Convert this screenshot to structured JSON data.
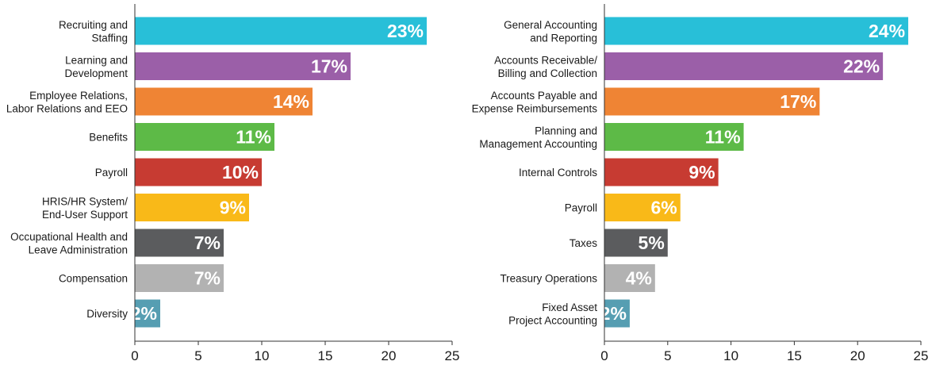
{
  "chart_data": [
    {
      "type": "bar",
      "orientation": "horizontal",
      "categories": [
        [
          "Recruiting and",
          "Staffing"
        ],
        [
          "Learning and",
          "Development"
        ],
        [
          "Employee Relations,",
          "Labor Relations and EEO"
        ],
        [
          "Benefits"
        ],
        [
          "Payroll"
        ],
        [
          "HRIS/HR System/",
          "End-User Support"
        ],
        [
          "Occupational Health and",
          "Leave Administration"
        ],
        [
          "Compensation"
        ],
        [
          "Diversity"
        ]
      ],
      "values": [
        23,
        17,
        14,
        11,
        10,
        9,
        7,
        7,
        2
      ],
      "value_labels": [
        "23%",
        "17%",
        "14%",
        "11%",
        "10%",
        "9%",
        "7%",
        "7%",
        "2%"
      ],
      "colors": [
        "#28bfd8",
        "#9b5fa8",
        "#ef8434",
        "#5dba47",
        "#c73b32",
        "#f9b918",
        "#5b5c5e",
        "#b2b2b2",
        "#569eb2"
      ],
      "xlim": [
        0,
        25
      ],
      "xticks": [
        "0",
        "5",
        "10",
        "15",
        "20",
        "25"
      ],
      "title": "",
      "xlabel": "",
      "ylabel": "",
      "grid": false
    },
    {
      "type": "bar",
      "orientation": "horizontal",
      "categories": [
        [
          "General Accounting",
          "and Reporting"
        ],
        [
          "Accounts Receivable/",
          "Billing and Collection"
        ],
        [
          "Accounts Payable and",
          "Expense Reimbursements"
        ],
        [
          "Planning and",
          "Management Accounting"
        ],
        [
          "Internal Controls"
        ],
        [
          "Payroll"
        ],
        [
          "Taxes"
        ],
        [
          "Treasury Operations"
        ],
        [
          "Fixed Asset",
          "Project Accounting"
        ]
      ],
      "values": [
        24,
        22,
        17,
        11,
        9,
        6,
        5,
        4,
        2
      ],
      "value_labels": [
        "24%",
        "22%",
        "17%",
        "11%",
        "9%",
        "6%",
        "5%",
        "4%",
        "2%"
      ],
      "colors": [
        "#28bfd8",
        "#9b5fa8",
        "#ef8434",
        "#5dba47",
        "#c73b32",
        "#f9b918",
        "#5b5c5e",
        "#b2b2b2",
        "#569eb2"
      ],
      "xlim": [
        0,
        25
      ],
      "xticks": [
        "0",
        "5",
        "10",
        "15",
        "20",
        "25"
      ],
      "title": "",
      "xlabel": "",
      "ylabel": "",
      "grid": false
    }
  ]
}
